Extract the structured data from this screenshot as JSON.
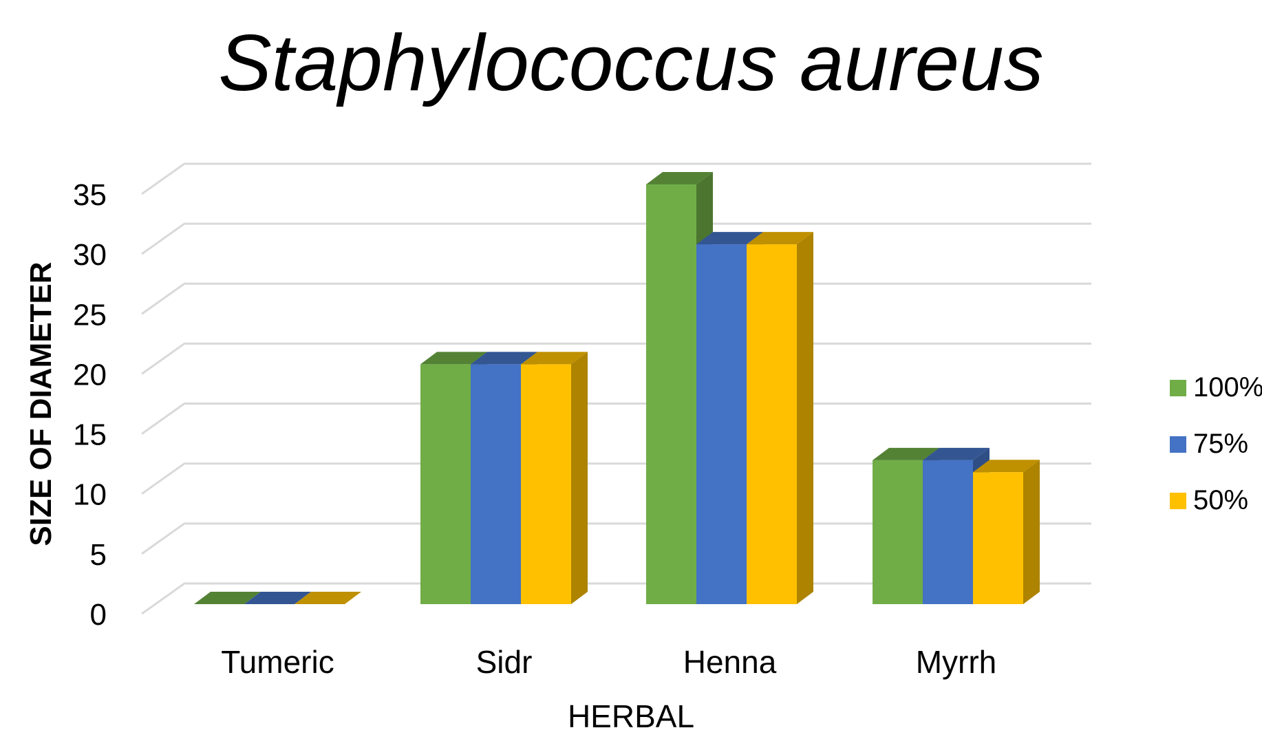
{
  "chart_data": {
    "type": "bar",
    "title": "Staphylococcus aureus",
    "xlabel": "HERBAL",
    "ylabel": "SIZE OF DIAMETER",
    "categories": [
      "Tumeric",
      "Sidr",
      "Henna",
      "Myrrh"
    ],
    "series": [
      {
        "name": "100%",
        "color": "#70AD47",
        "values": [
          0,
          20,
          35,
          12
        ]
      },
      {
        "name": "75%",
        "color": "#4472C4",
        "values": [
          0,
          20,
          30,
          12
        ]
      },
      {
        "name": "50%",
        "color": "#FFC000",
        "values": [
          0,
          20,
          30,
          11
        ]
      }
    ],
    "ylim": [
      0,
      35
    ],
    "yticks": [
      0,
      5,
      10,
      15,
      20,
      25,
      30,
      35
    ],
    "grid": true,
    "legend": "right",
    "style": "3d-clustered-column"
  }
}
